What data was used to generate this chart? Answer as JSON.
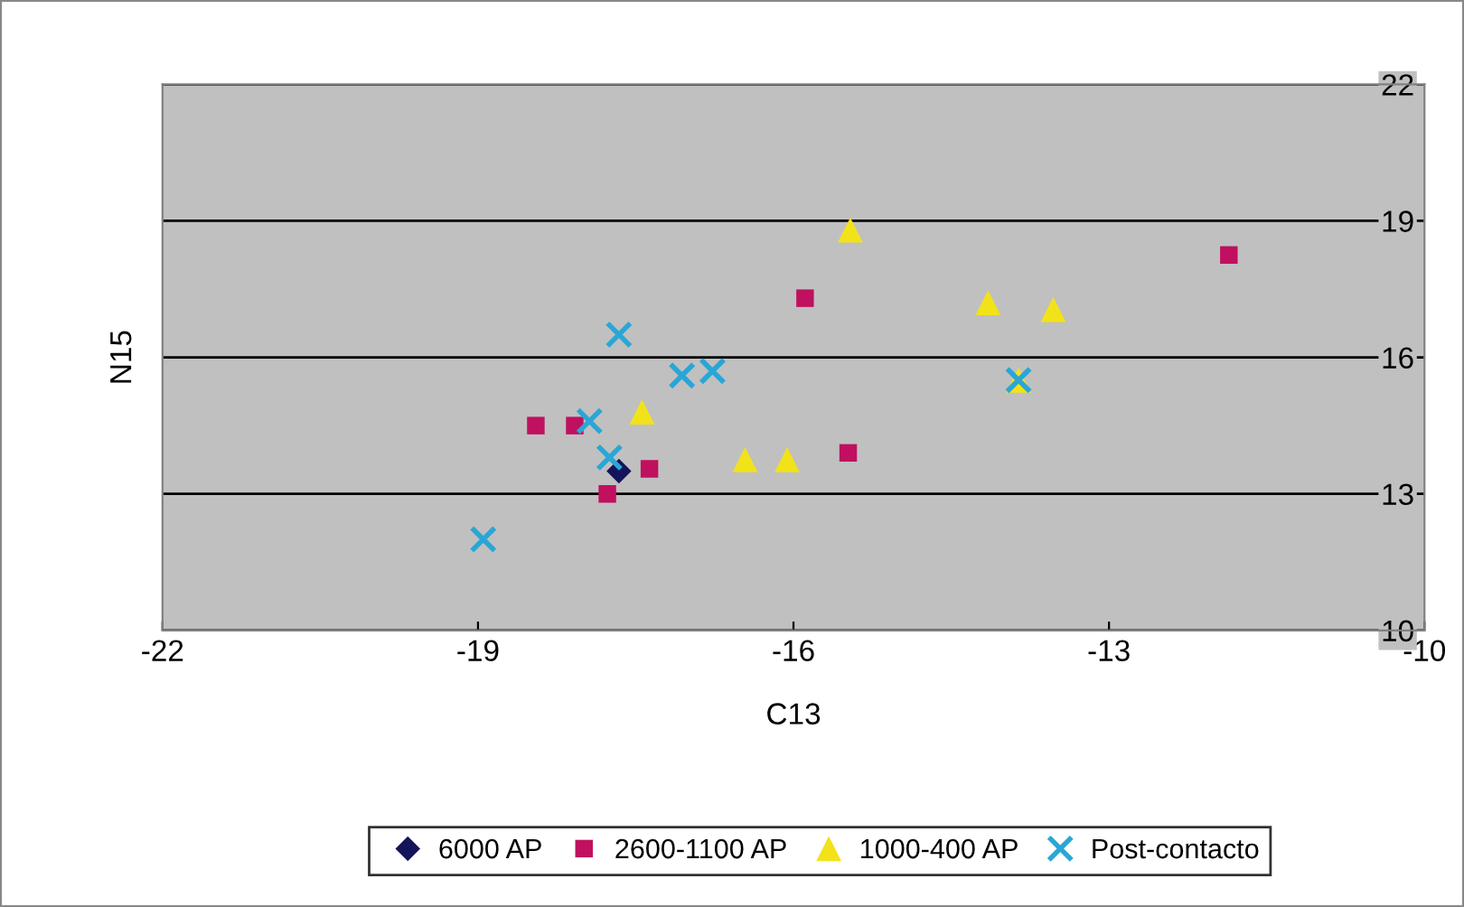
{
  "chart_data": {
    "type": "scatter",
    "xlabel": "C13",
    "ylabel": "N15",
    "xlim": [
      -22,
      -10
    ],
    "xticks": [
      -22,
      -19,
      -16,
      -13,
      -10
    ],
    "ylim": [
      10,
      22
    ],
    "yticks": [
      10,
      13,
      16,
      19,
      22
    ],
    "grid": "y",
    "legend": "bottom",
    "series": [
      {
        "name": "6000 AP",
        "color": "#14145a",
        "marker": "diamond",
        "x": [
          -17.66
        ],
        "values": [
          13.5
        ]
      },
      {
        "name": "2600-1100 AP",
        "color": "#c0105f",
        "marker": "square",
        "x": [
          -18.45,
          -18.08,
          -17.77,
          -17.37,
          -15.89,
          -15.48,
          -11.86
        ],
        "values": [
          14.5,
          14.5,
          13.0,
          13.55,
          17.3,
          13.9,
          18.25
        ]
      },
      {
        "name": "1000-400 AP",
        "color": "#f2e21a",
        "marker": "triangle",
        "x": [
          -15.46,
          -17.44,
          -16.46,
          -16.06,
          -14.15,
          -13.53,
          -13.86
        ],
        "values": [
          18.8,
          14.8,
          13.75,
          13.75,
          17.2,
          17.05,
          15.5
        ]
      },
      {
        "name": "Post-contacto",
        "color": "#2aa6d6",
        "marker": "cross",
        "x": [
          -18.95,
          -17.66,
          -17.94,
          -17.75,
          -17.06,
          -16.77,
          -13.86
        ],
        "values": [
          12.0,
          16.5,
          14.6,
          13.8,
          15.6,
          15.7,
          15.5
        ]
      }
    ]
  }
}
